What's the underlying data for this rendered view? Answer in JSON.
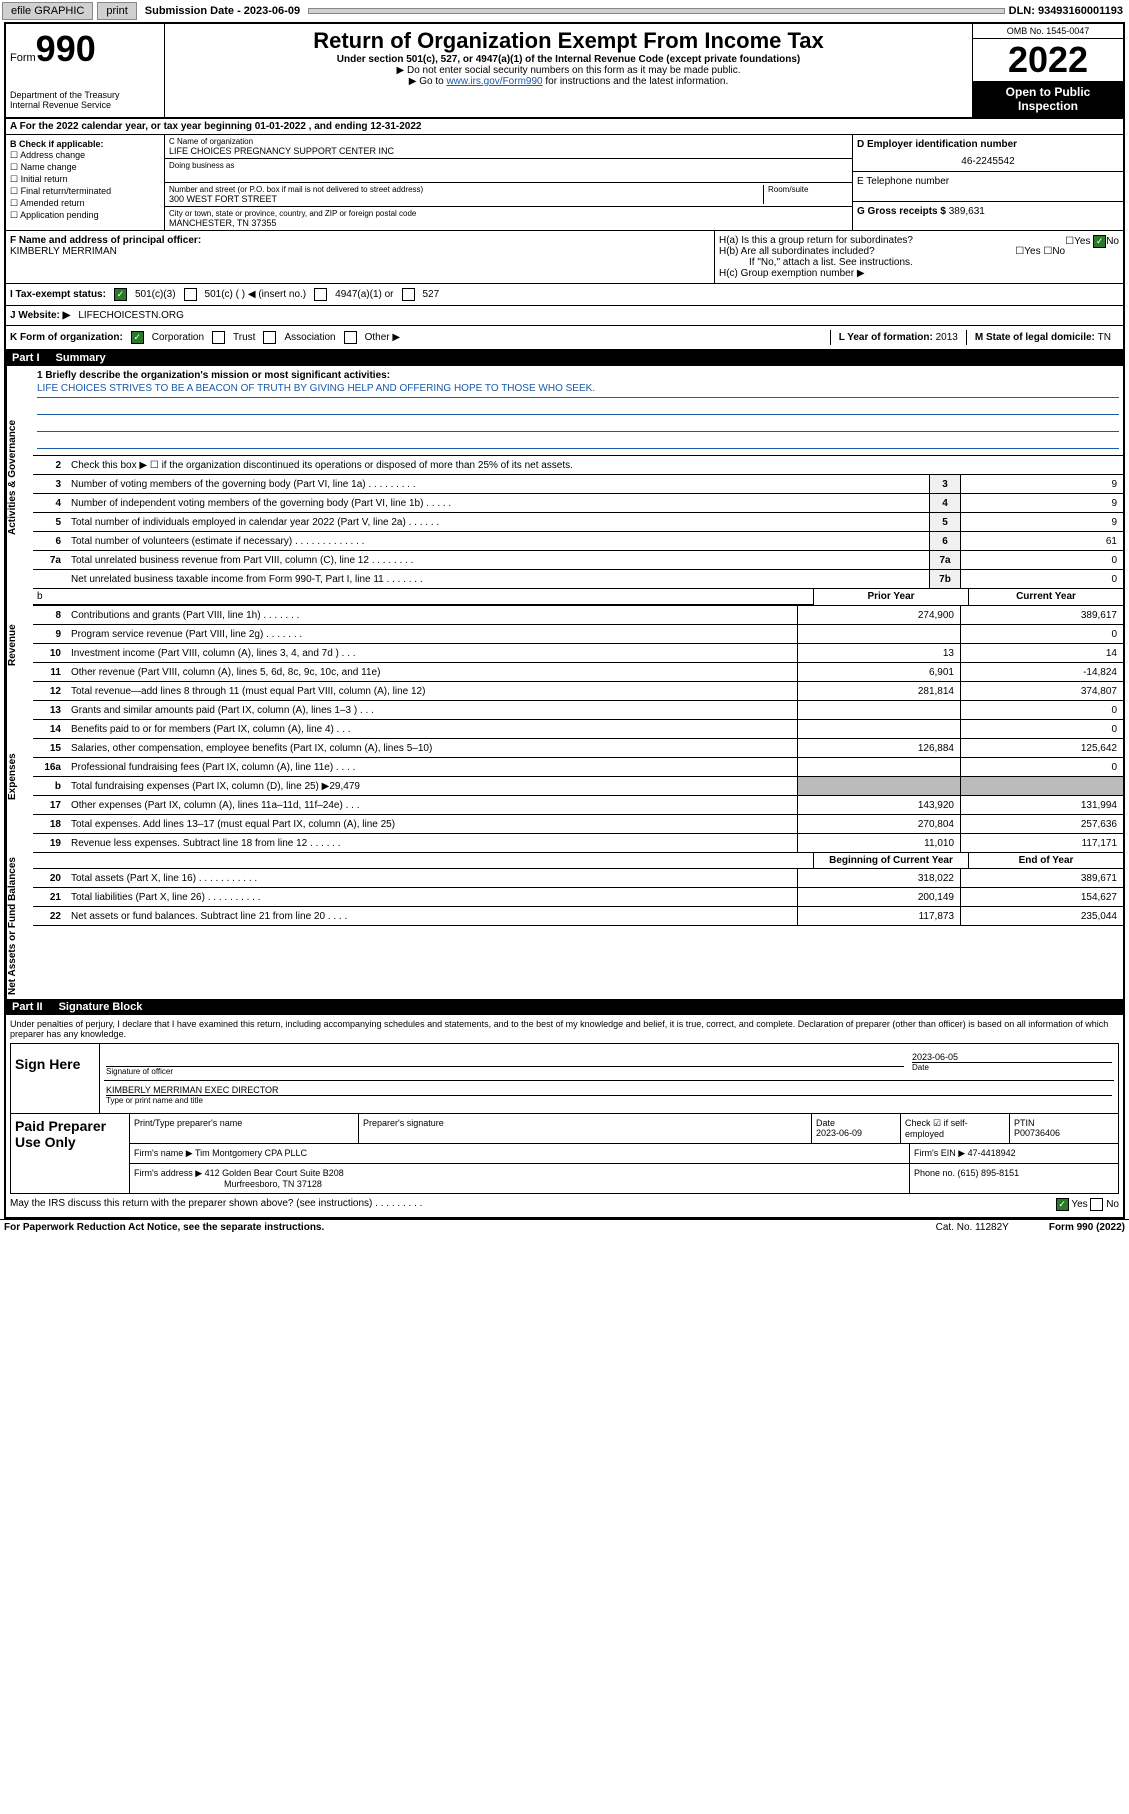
{
  "topbar": {
    "efile": "efile GRAPHIC",
    "print": "print",
    "sub_label": "Submission Date - ",
    "sub_date": "2023-06-09",
    "dln_label": "DLN: ",
    "dln": "93493160001193"
  },
  "header": {
    "form_prefix": "Form",
    "form_num": "990",
    "dept": "Department of the Treasury",
    "irs": "Internal Revenue Service",
    "title": "Return of Organization Exempt From Income Tax",
    "sub": "Under section 501(c), 527, or 4947(a)(1) of the Internal Revenue Code (except private foundations)",
    "note1": "▶ Do not enter social security numbers on this form as it may be made public.",
    "note2_pre": "▶ Go to ",
    "note2_link": "www.irs.gov/Form990",
    "note2_post": " for instructions and the latest information.",
    "omb": "OMB No. 1545-0047",
    "year": "2022",
    "open": "Open to Public Inspection"
  },
  "period": "A For the 2022 calendar year, or tax year beginning 01-01-2022   , and ending 12-31-2022",
  "boxB": {
    "label": "B Check if applicable:",
    "opts": [
      "Address change",
      "Name change",
      "Initial return",
      "Final return/terminated",
      "Amended return",
      "Application pending"
    ]
  },
  "boxC": {
    "name_label": "C Name of organization",
    "name": "LIFE CHOICES PREGNANCY SUPPORT CENTER INC",
    "dba_label": "Doing business as",
    "addr_label": "Number and street (or P.O. box if mail is not delivered to street address)",
    "room_label": "Room/suite",
    "addr": "300 WEST FORT STREET",
    "city_label": "City or town, state or province, country, and ZIP or foreign postal code",
    "city": "MANCHESTER, TN  37355"
  },
  "boxD": {
    "ein_label": "D Employer identification number",
    "ein": "46-2245542",
    "phone_label": "E Telephone number",
    "gross_label": "G Gross receipts $ ",
    "gross": "389,631"
  },
  "boxF": {
    "label": "F  Name and address of principal officer:",
    "name": "KIMBERLY MERRIMAN"
  },
  "boxH": {
    "ha": "H(a)  Is this a group return for subordinates?",
    "hb": "H(b)  Are all subordinates included?",
    "hb_note": "If \"No,\" attach a list. See instructions.",
    "hc": "H(c)  Group exemption number ▶",
    "yes": "Yes",
    "no": "No"
  },
  "status": {
    "label": "I   Tax-exempt status:",
    "c3": "501(c)(3)",
    "c": "501(c) (   ) ◀ (insert no.)",
    "a1": "4947(a)(1) or",
    "s527": "527"
  },
  "website": {
    "label": "J   Website: ▶",
    "val": "LIFECHOICESTN.ORG"
  },
  "kform": {
    "label": "K Form of organization:",
    "corp": "Corporation",
    "trust": "Trust",
    "assoc": "Association",
    "other": "Other ▶",
    "year_label": "L Year of formation: ",
    "year": "2013",
    "state_label": "M State of legal domicile: ",
    "state": "TN"
  },
  "part1": {
    "label": "Part I",
    "title": "Summary"
  },
  "mission": {
    "q": "1    Briefly describe the organization's mission or most significant activities:",
    "text": "LIFE CHOICES STRIVES TO BE A BEACON OF TRUTH BY GIVING HELP AND OFFERING HOPE TO THOSE WHO SEEK."
  },
  "gov_lines": [
    {
      "n": "2",
      "desc": "Check this box ▶ ☐  if the organization discontinued its operations or disposed of more than 25% of its net assets."
    },
    {
      "n": "3",
      "desc": "Number of voting members of the governing body (Part VI, line 1a)   .    .    .    .    .    .    .    .    .",
      "box": "3",
      "val": "9"
    },
    {
      "n": "4",
      "desc": "Number of independent voting members of the governing body (Part VI, line 1b)   .    .    .    .    .",
      "box": "4",
      "val": "9"
    },
    {
      "n": "5",
      "desc": "Total number of individuals employed in calendar year 2022 (Part V, line 2a)   .    .    .    .    .    .",
      "box": "5",
      "val": "9"
    },
    {
      "n": "6",
      "desc": "Total number of volunteers (estimate if necessary)   .    .    .    .    .    .    .    .    .    .    .    .    .",
      "box": "6",
      "val": "61"
    },
    {
      "n": "7a",
      "desc": "Total unrelated business revenue from Part VIII, column (C), line 12   .    .    .    .    .    .    .    .",
      "box": "7a",
      "val": "0"
    },
    {
      "n": "",
      "desc": "Net unrelated business taxable income from Form 990-T, Part I, line 11   .    .    .    .    .    .    .",
      "box": "7b",
      "val": "0"
    }
  ],
  "headers": {
    "prior": "Prior Year",
    "current": "Current Year",
    "boy": "Beginning of Current Year",
    "eoy": "End of Year"
  },
  "rev_lines": [
    {
      "n": "8",
      "desc": "Contributions and grants (Part VIII, line 1h)   .    .    .    .    .    .    .",
      "prior": "274,900",
      "cur": "389,617"
    },
    {
      "n": "9",
      "desc": "Program service revenue (Part VIII, line 2g)   .    .    .    .    .    .    .",
      "prior": "",
      "cur": "0"
    },
    {
      "n": "10",
      "desc": "Investment income (Part VIII, column (A), lines 3, 4, and 7d )   .    .    .",
      "prior": "13",
      "cur": "14"
    },
    {
      "n": "11",
      "desc": "Other revenue (Part VIII, column (A), lines 5, 6d, 8c, 9c, 10c, and 11e)",
      "prior": "6,901",
      "cur": "-14,824"
    },
    {
      "n": "12",
      "desc": "Total revenue—add lines 8 through 11 (must equal Part VIII, column (A), line 12)",
      "prior": "281,814",
      "cur": "374,807"
    }
  ],
  "exp_lines": [
    {
      "n": "13",
      "desc": "Grants and similar amounts paid (Part IX, column (A), lines 1–3 )   .    .    .",
      "prior": "",
      "cur": "0"
    },
    {
      "n": "14",
      "desc": "Benefits paid to or for members (Part IX, column (A), line 4)   .    .    .",
      "prior": "",
      "cur": "0"
    },
    {
      "n": "15",
      "desc": "Salaries, other compensation, employee benefits (Part IX, column (A), lines 5–10)",
      "prior": "126,884",
      "cur": "125,642"
    },
    {
      "n": "16a",
      "desc": "Professional fundraising fees (Part IX, column (A), line 11e)   .    .    .    .",
      "prior": "",
      "cur": "0"
    },
    {
      "n": "b",
      "desc": "Total fundraising expenses (Part IX, column (D), line 25) ▶29,479",
      "prior": "",
      "cur": "",
      "noval": true
    },
    {
      "n": "17",
      "desc": "Other expenses (Part IX, column (A), lines 11a–11d, 11f–24e)   .    .    .",
      "prior": "143,920",
      "cur": "131,994"
    },
    {
      "n": "18",
      "desc": "Total expenses. Add lines 13–17 (must equal Part IX, column (A), line 25)",
      "prior": "270,804",
      "cur": "257,636"
    },
    {
      "n": "19",
      "desc": "Revenue less expenses. Subtract line 18 from line 12   .    .    .    .    .    .",
      "prior": "11,010",
      "cur": "117,171"
    }
  ],
  "net_lines": [
    {
      "n": "20",
      "desc": "Total assets (Part X, line 16)   .    .    .    .    .    .    .    .    .    .    .",
      "prior": "318,022",
      "cur": "389,671"
    },
    {
      "n": "21",
      "desc": "Total liabilities (Part X, line 26)   .    .    .    .    .    .    .    .    .    .",
      "prior": "200,149",
      "cur": "154,627"
    },
    {
      "n": "22",
      "desc": "Net assets or fund balances. Subtract line 21 from line 20   .    .    .    .",
      "prior": "117,873",
      "cur": "235,044"
    }
  ],
  "vtabs": {
    "gov": "Activities & Governance",
    "rev": "Revenue",
    "exp": "Expenses",
    "net": "Net Assets or Fund Balances"
  },
  "part2": {
    "label": "Part II",
    "title": "Signature Block"
  },
  "sig": {
    "penalty": "Under penalties of perjury, I declare that I have examined this return, including accompanying schedules and statements, and to the best of my knowledge and belief, it is true, correct, and complete. Declaration of preparer (other than officer) is based on all information of which preparer has any knowledge.",
    "sign_here": "Sign Here",
    "sig_officer": "Signature of officer",
    "date": "Date",
    "date_val": "2023-06-05",
    "name": "KIMBERLY MERRIMAN  EXEC DIRECTOR",
    "name_label": "Type or print name and title"
  },
  "paid": {
    "label": "Paid Preparer Use Only",
    "h1": "Print/Type preparer's name",
    "h2": "Preparer's signature",
    "h3": "Date",
    "h3v": "2023-06-09",
    "h4": "Check ☑ if self-employed",
    "h5": "PTIN",
    "h5v": "P00736406",
    "firm_label": "Firm's name    ▶ ",
    "firm": "Tim Montgomery CPA PLLC",
    "ein_label": "Firm's EIN ▶ ",
    "ein": "47-4418942",
    "addr_label": "Firm's address ▶ ",
    "addr1": "412 Golden Bear Court Suite B208",
    "addr2": "Murfreesboro, TN  37128",
    "phone_label": "Phone no. ",
    "phone": "(615) 895-8151"
  },
  "discuss": {
    "q": "May the IRS discuss this return with the preparer shown above? (see instructions)   .    .    .    .    .    .    .    .    .",
    "yes": "Yes",
    "no": "No"
  },
  "footer": {
    "left": "For Paperwork Reduction Act Notice, see the separate instructions.",
    "mid": "Cat. No. 11282Y",
    "right": "Form 990 (2022)"
  }
}
